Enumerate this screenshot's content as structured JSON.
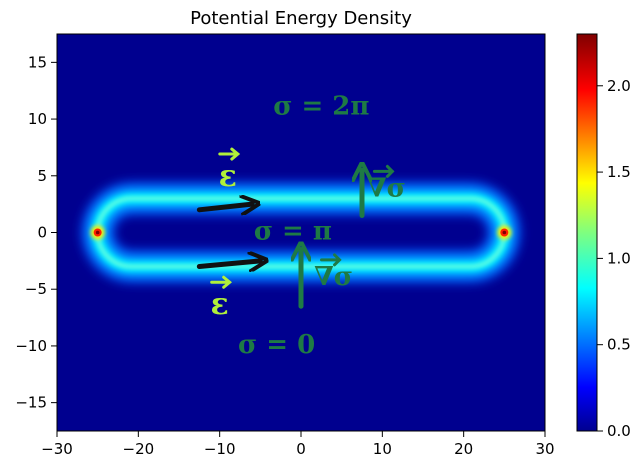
{
  "chart_data": {
    "type": "heatmap",
    "title": "Potential Energy Density",
    "xlabel": "",
    "ylabel": "",
    "xlim": [
      -30,
      30
    ],
    "ylim": [
      -17.5,
      17.5
    ],
    "x_ticks": [
      -30,
      -20,
      -10,
      0,
      10,
      20,
      30
    ],
    "y_ticks": [
      -15,
      -10,
      -5,
      0,
      5,
      10,
      15
    ],
    "x_tick_labels": [
      "−30",
      "−20",
      "−10",
      "0",
      "10",
      "20",
      "30"
    ],
    "y_tick_labels": [
      "−15",
      "−10",
      "−5",
      "0",
      "5",
      "10",
      "15"
    ],
    "colorbar": {
      "range": [
        0.0,
        2.3
      ],
      "ticks": [
        0.0,
        0.5,
        1.0,
        1.5,
        2.0
      ],
      "tick_labels": [
        "0.0",
        "0.5",
        "1.0",
        "1.5",
        "2.0"
      ],
      "colormap": "jet"
    },
    "ring": {
      "x_range": [
        -25,
        25
      ],
      "y_range": [
        -3,
        3
      ],
      "peak_value_at_ends": 2.3,
      "typical_value": 0.55
    },
    "grid": false,
    "annotations": [
      {
        "text": "σ = 2π",
        "x": 2.5,
        "y": 11,
        "color": "#1e7a45"
      },
      {
        "text": "σ = π",
        "x": -1,
        "y": 0,
        "color": "#1e7a45"
      },
      {
        "text": "σ = 0",
        "x": -3,
        "y": -10,
        "color": "#1e7a45"
      },
      {
        "text": "∇σ",
        "x": 10.5,
        "y": 3.8,
        "color": "#1e7a45"
      },
      {
        "text": "∇σ",
        "x": 4,
        "y": -4,
        "color": "#1e7a45"
      },
      {
        "text": "ε",
        "x": -9,
        "y": 4.8,
        "color": "#b0f03a"
      },
      {
        "text": "ε",
        "x": -10,
        "y": -6.5,
        "color": "#b0f03a"
      }
    ],
    "arrows": [
      {
        "x0": -12.5,
        "y0": 2,
        "x1": -6,
        "y1": 2.5,
        "color": "#111111"
      },
      {
        "x0": -12.5,
        "y0": -3,
        "x1": -5,
        "y1": -2.5,
        "color": "#111111"
      },
      {
        "x0": 7.5,
        "y0": 1.5,
        "x1": 7.5,
        "y1": 5.5,
        "color": "#1e7a45"
      },
      {
        "x0": 0,
        "y0": -6.5,
        "x1": 0,
        "y1": -1.5,
        "color": "#1e7a45"
      }
    ]
  },
  "colors": {
    "background": "#00008f",
    "hand_green": "#1e7a45",
    "hand_lime": "#b0f03a",
    "arrow_black": "#111111"
  }
}
